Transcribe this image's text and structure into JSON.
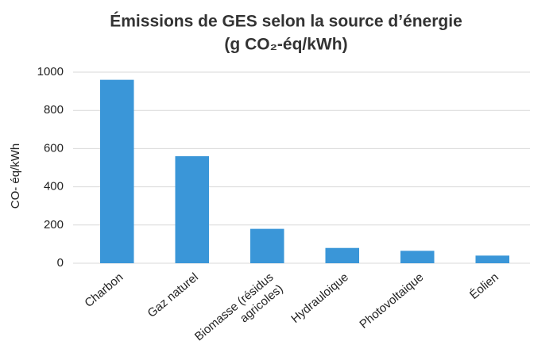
{
  "chart_data": {
    "type": "bar",
    "title": "Émissions de GES selon la source d’énergie",
    "subtitle": "(g CO₂-éq/kWh)",
    "y_label": "CO- éq/kWh",
    "categories": [
      "Charbon",
      "Gaz naturel",
      "Biomasse (résidus agricoles)",
      "Hydrauloique",
      "Photovoltaique",
      "Éolien"
    ],
    "values": [
      960,
      560,
      180,
      80,
      65,
      40
    ],
    "color": "#3a96d8",
    "ylim": [
      0,
      1000
    ],
    "yticks": [
      0,
      200,
      400,
      600,
      800,
      1000
    ],
    "grid": true
  }
}
